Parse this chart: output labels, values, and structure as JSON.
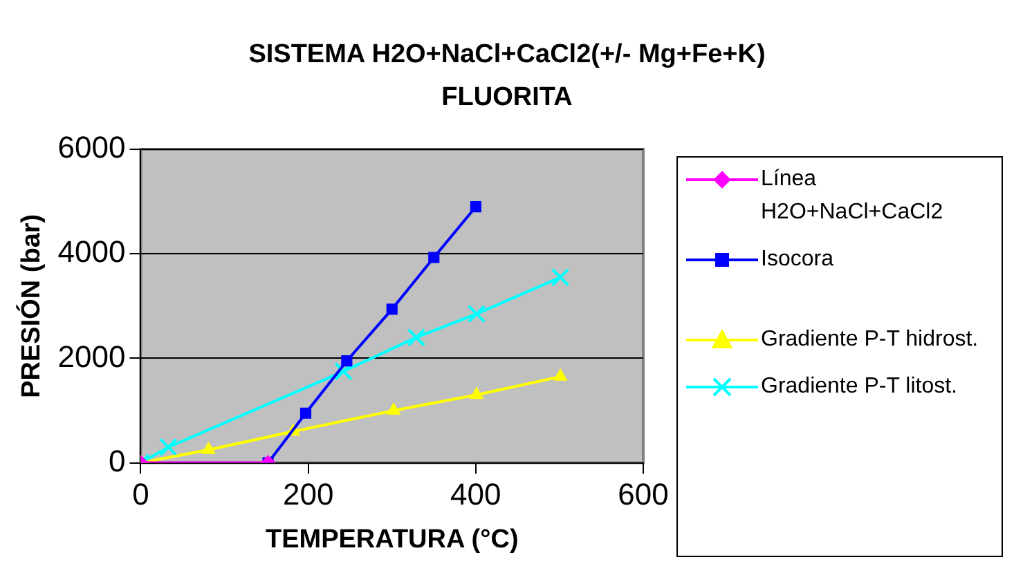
{
  "chart_data": {
    "type": "line",
    "title": "SISTEMA H2O+NaCl+CaCl2(+/- Mg+Fe+K)\nFLUORITA",
    "xlabel": "TEMPERATURA (°C)",
    "ylabel": "PRESIÓN (bar)",
    "xlim": [
      0,
      600
    ],
    "xticks": [
      0,
      200,
      400,
      600
    ],
    "ylim": [
      0,
      6000
    ],
    "yticks": [
      0,
      2000,
      4000,
      6000
    ],
    "grid": "y",
    "legend": "right",
    "line_style": "solid",
    "series": [
      {
        "name": "Línea H2O+NaCl+CaCl2",
        "color": "#ff00ff",
        "marker": "diamond",
        "x": [
          0,
          152
        ],
        "values": [
          0,
          0
        ]
      },
      {
        "name": "Isocora",
        "color": "#0000ff",
        "marker": "square",
        "x": [
          152,
          197,
          246,
          300,
          350,
          400
        ],
        "values": [
          0,
          950,
          1950,
          2940,
          3930,
          4900
        ]
      },
      {
        "name": "Gradiente P-T hidrost.",
        "color": "#ffff00",
        "marker": "triangle",
        "x": [
          0,
          81,
          182,
          302,
          401,
          501
        ],
        "values": [
          0,
          250,
          600,
          1000,
          1300,
          1650
        ]
      },
      {
        "name": "Gradiente P-T litost.",
        "color": "#00ffff",
        "marker": "cross",
        "x": [
          0,
          33,
          242,
          329,
          401,
          501
        ],
        "values": [
          0,
          300,
          1750,
          2400,
          2850,
          3550
        ]
      }
    ]
  }
}
